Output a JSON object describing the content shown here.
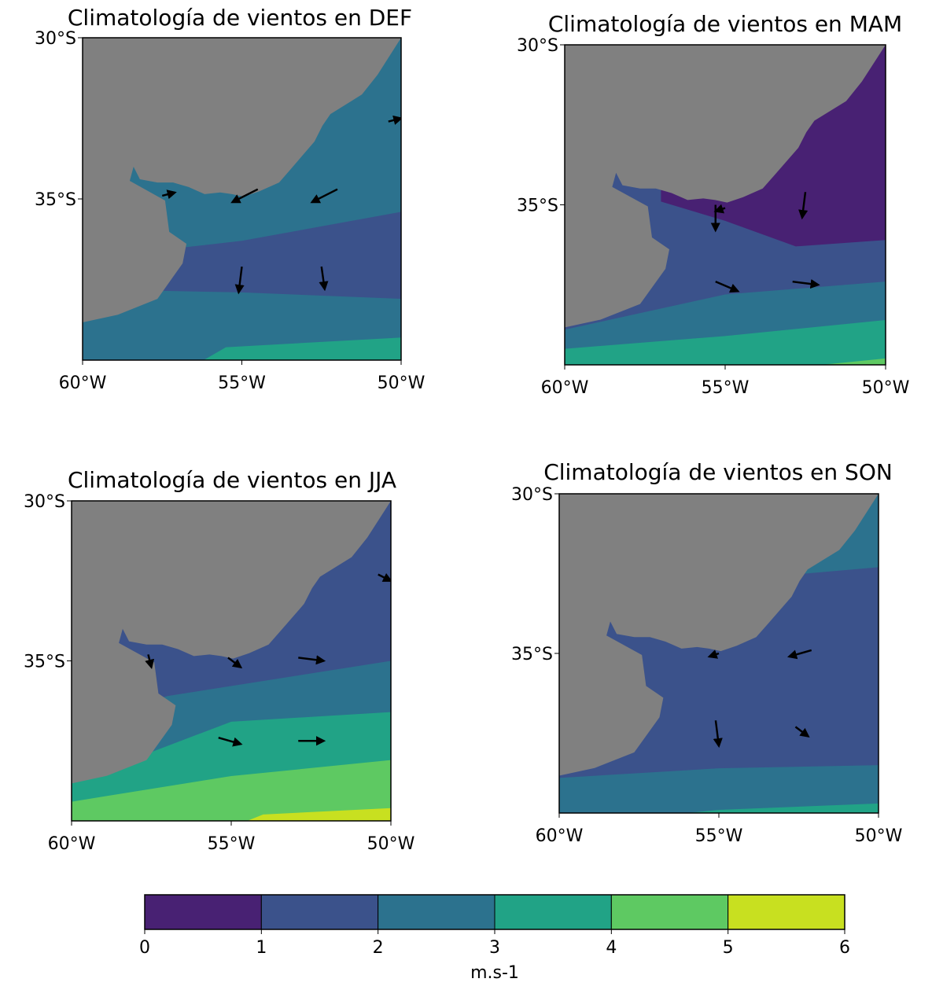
{
  "panels": [
    {
      "title": "Climatología de vientos en DEF",
      "yticks": [
        "30°S",
        "35°S"
      ],
      "xticks": [
        "60°W",
        "55°W",
        "50°W"
      ]
    },
    {
      "title": "Climatología de vientos en MAM",
      "yticks": [
        "30°S",
        "35°S"
      ],
      "xticks": [
        "60°W",
        "55°W",
        "50°W"
      ]
    },
    {
      "title": "Climatología de vientos en JJA",
      "yticks": [
        "30°S",
        "35°S"
      ],
      "xticks": [
        "60°W",
        "55°W",
        "50°W"
      ]
    },
    {
      "title": "Climatología de vientos en SON",
      "yticks": [
        "30°S",
        "35°S"
      ],
      "xticks": [
        "60°W",
        "55°W",
        "50°W"
      ]
    }
  ],
  "colorbar": {
    "ticks": [
      0,
      1,
      2,
      3,
      4,
      5,
      6
    ],
    "colors": [
      "#482173",
      "#3b528b",
      "#2c728e",
      "#21a386",
      "#5ec962",
      "#c8e020"
    ],
    "label": "m.s-1"
  }
}
